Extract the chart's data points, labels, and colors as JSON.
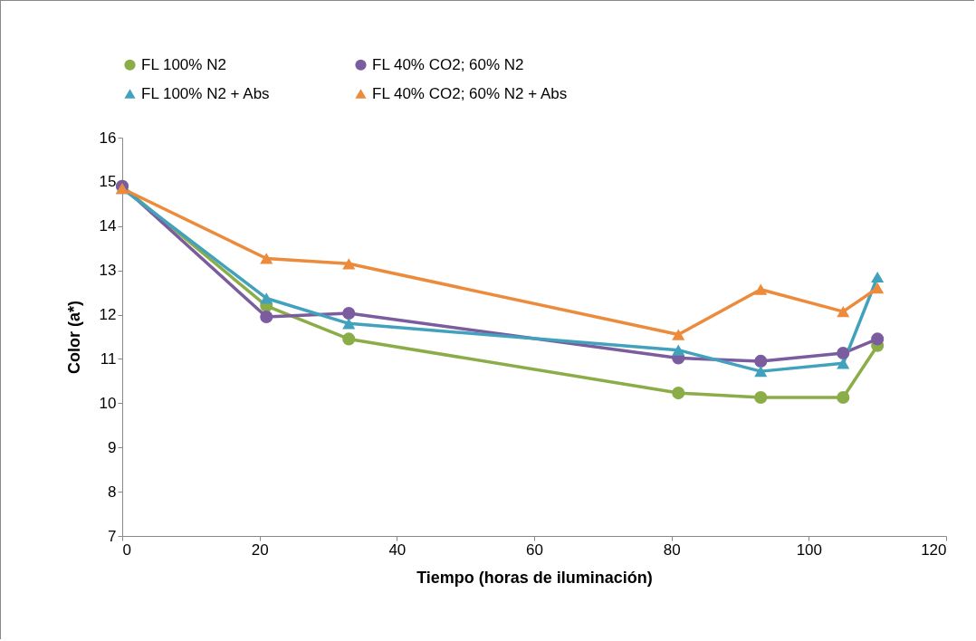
{
  "chart_data": {
    "type": "line",
    "xlabel": "Tiempo (horas de iluminación)",
    "ylabel": "Color (a*)",
    "x": [
      0,
      21,
      33,
      81,
      93,
      105,
      110
    ],
    "series": [
      {
        "name": "FL 100% N2",
        "color": "#8aad48",
        "marker": "circle",
        "values": [
          14.9,
          12.2,
          11.45,
          10.23,
          10.13,
          10.13,
          11.3
        ]
      },
      {
        "name": "FL 40% CO2; 60% N2",
        "color": "#7b5c9e",
        "marker": "circle",
        "values": [
          14.9,
          11.95,
          12.03,
          11.02,
          10.95,
          11.13,
          11.45
        ]
      },
      {
        "name": "FL 100% N2 + Abs",
        "color": "#42a2bd",
        "marker": "triangle",
        "values": [
          14.85,
          12.37,
          11.8,
          11.2,
          10.72,
          10.9,
          12.85
        ]
      },
      {
        "name": "FL 40% CO2; 60% N2 + Abs",
        "color": "#ec8b3b",
        "marker": "triangle",
        "values": [
          14.85,
          13.27,
          13.15,
          11.55,
          12.57,
          12.07,
          12.6
        ]
      }
    ],
    "xlim": [
      0,
      120
    ],
    "xticks": [
      0,
      20,
      40,
      60,
      80,
      100,
      120
    ],
    "ylim": [
      7,
      16
    ],
    "yticks": [
      7,
      8,
      9,
      10,
      11,
      12,
      13,
      14,
      15,
      16
    ],
    "grid": false,
    "legend": "top",
    "line_style": "solid"
  }
}
